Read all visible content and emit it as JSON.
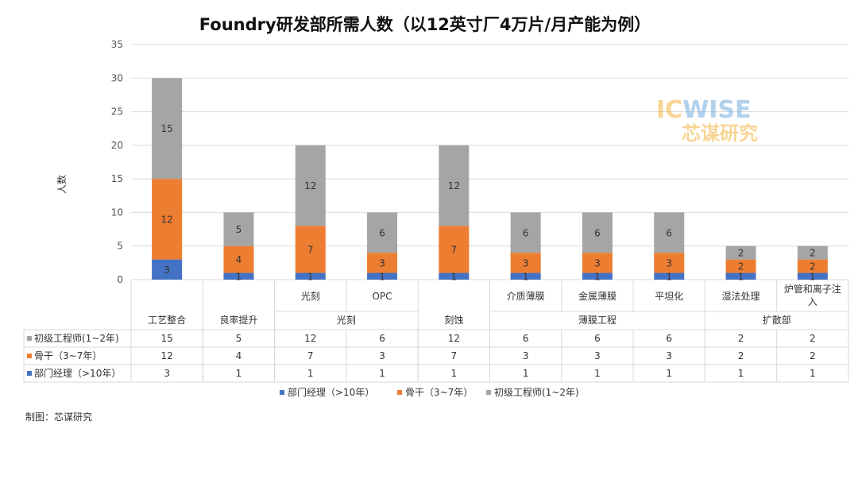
{
  "chart_data": {
    "type": "bar",
    "stacked": true,
    "title": "Foundry研发部所需人数（以12英寸厂4万片/月产能为例）",
    "ylabel": "人数",
    "ylim": [
      0,
      35
    ],
    "yticks": [
      0,
      5,
      10,
      15,
      20,
      25,
      30,
      35
    ],
    "grid": true,
    "legend_position": "bottom",
    "categories": [
      "工艺整合",
      "良率提升",
      "光刻",
      "OPC",
      "刻蚀",
      "介质薄膜",
      "金属薄膜",
      "平坦化",
      "湿法处理",
      "炉管和离子注入"
    ],
    "groups": [
      {
        "label": "工艺整合",
        "span": 1
      },
      {
        "label": "良率提升",
        "span": 1
      },
      {
        "label": "光刻",
        "span": 2
      },
      {
        "label": "刻蚀",
        "span": 1
      },
      {
        "label": "薄膜工程",
        "span": 3
      },
      {
        "label": "扩散部",
        "span": 2
      }
    ],
    "subcategory_labels": [
      "",
      "",
      "光刻",
      "OPC",
      "",
      "介质薄膜",
      "金属薄膜",
      "平坦化",
      "湿法处理",
      "炉管和离子注入"
    ],
    "series": [
      {
        "name": "部门经理（>10年）",
        "color": "#4472c4",
        "values": [
          3,
          1,
          1,
          1,
          1,
          1,
          1,
          1,
          1,
          1
        ]
      },
      {
        "name": "骨干（3~7年）",
        "color": "#ed7d31",
        "values": [
          12,
          4,
          7,
          3,
          7,
          3,
          3,
          3,
          2,
          2
        ]
      },
      {
        "name": "初级工程师(1~2年)",
        "color": "#a5a5a5",
        "values": [
          15,
          5,
          12,
          6,
          12,
          6,
          6,
          6,
          2,
          2
        ]
      }
    ],
    "table_rows": [
      {
        "label": "初级工程师(1~2年)",
        "series_index": 2
      },
      {
        "label": "骨干（3~7年）",
        "series_index": 1
      },
      {
        "label": "部门经理（>10年）",
        "series_index": 0
      }
    ]
  },
  "watermark": {
    "logo_a": "IC",
    "logo_b": "WISE",
    "text": "芯谋研究"
  },
  "credit": "制图：芯谋研究"
}
